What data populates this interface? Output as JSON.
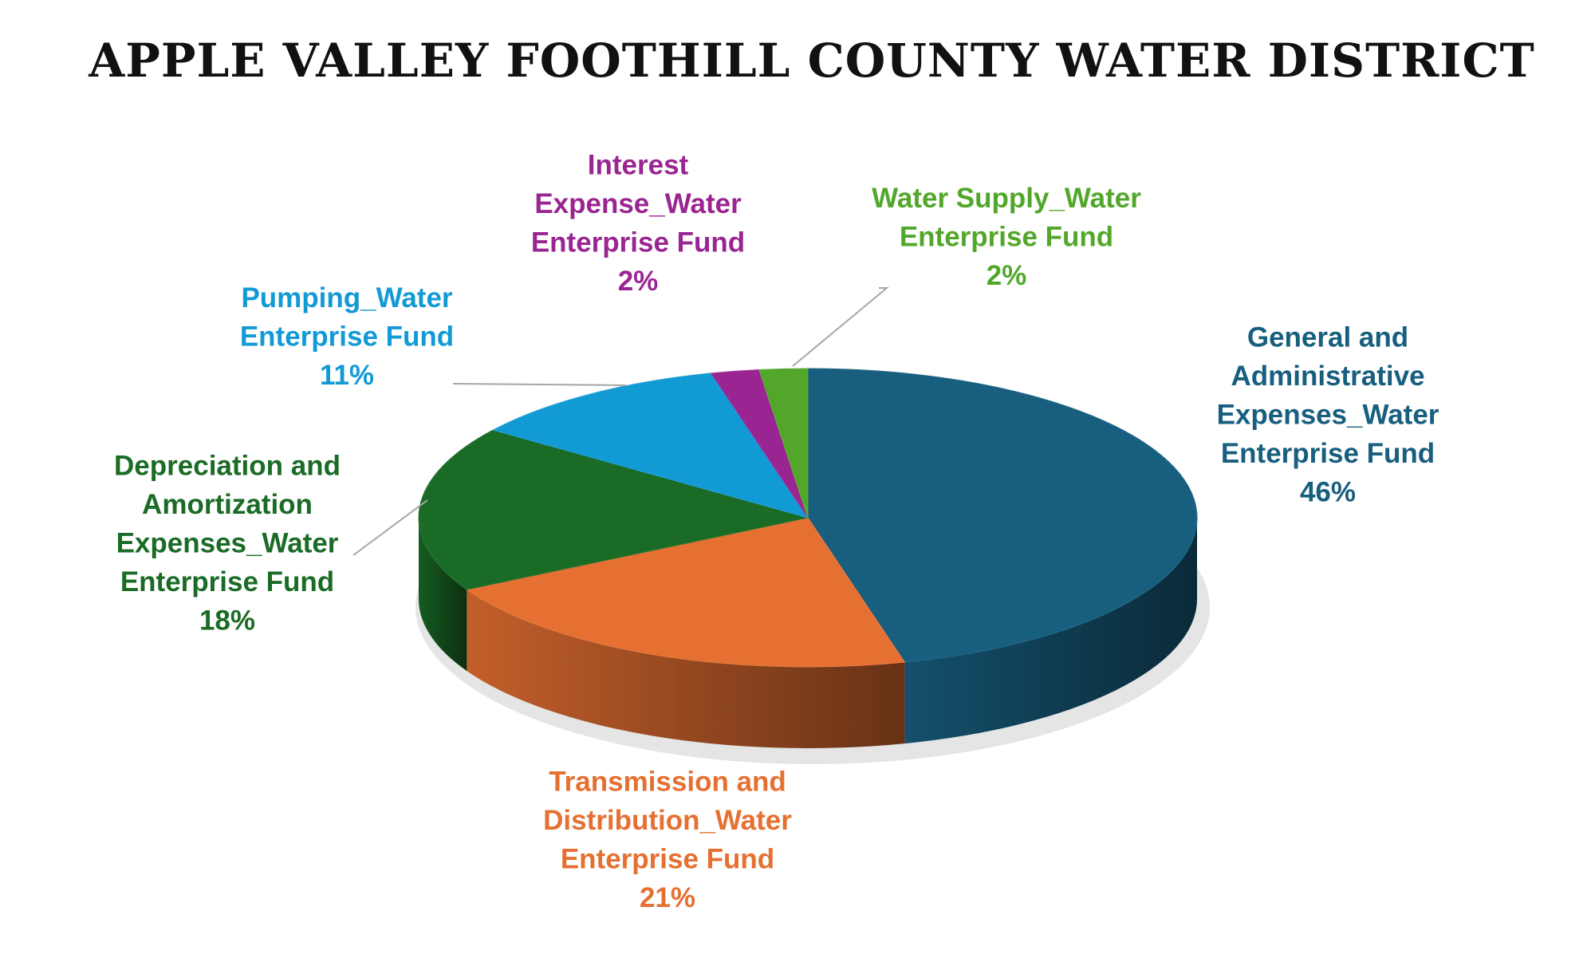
{
  "chart_data": {
    "type": "pie",
    "title": "APPLE VALLEY FOOTHILL COUNTY WATER DISTRICT",
    "unit": "%",
    "slices": [
      {
        "label": "General and Administrative Expenses_Water Enterprise Fund",
        "lines": [
          "General and",
          "Administrative",
          "Expenses_Water",
          "Enterprise Fund"
        ],
        "value": 46,
        "value_label": "46%",
        "color": "#175E7F"
      },
      {
        "label": "Transmission and Distribution_Water Enterprise Fund",
        "lines": [
          "Transmission and",
          "Distribution_Water",
          "Enterprise Fund"
        ],
        "value": 21,
        "value_label": "21%",
        "color": "#E57031"
      },
      {
        "label": "Depreciation and Amortization Expenses_Water Enterprise Fund",
        "lines": [
          "Depreciation and",
          "Amortization",
          "Expenses_Water",
          "Enterprise Fund"
        ],
        "value": 18,
        "value_label": "18%",
        "color": "#1A6B25"
      },
      {
        "label": "Pumping_Water Enterprise Fund",
        "lines": [
          "Pumping_Water",
          "Enterprise Fund"
        ],
        "value": 11,
        "value_label": "11%",
        "color": "#129AD5"
      },
      {
        "label": "Interest Expense_Water Enterprise Fund",
        "lines": [
          "Interest",
          "Expense_Water",
          "Enterprise Fund"
        ],
        "value": 2,
        "value_label": "2%",
        "color": "#9A2592"
      },
      {
        "label": "Water Supply_Water Enterprise Fund",
        "lines": [
          "Water Supply_Water",
          "Enterprise Fund"
        ],
        "value": 2,
        "value_label": "2%",
        "color": "#52A72B"
      }
    ]
  }
}
